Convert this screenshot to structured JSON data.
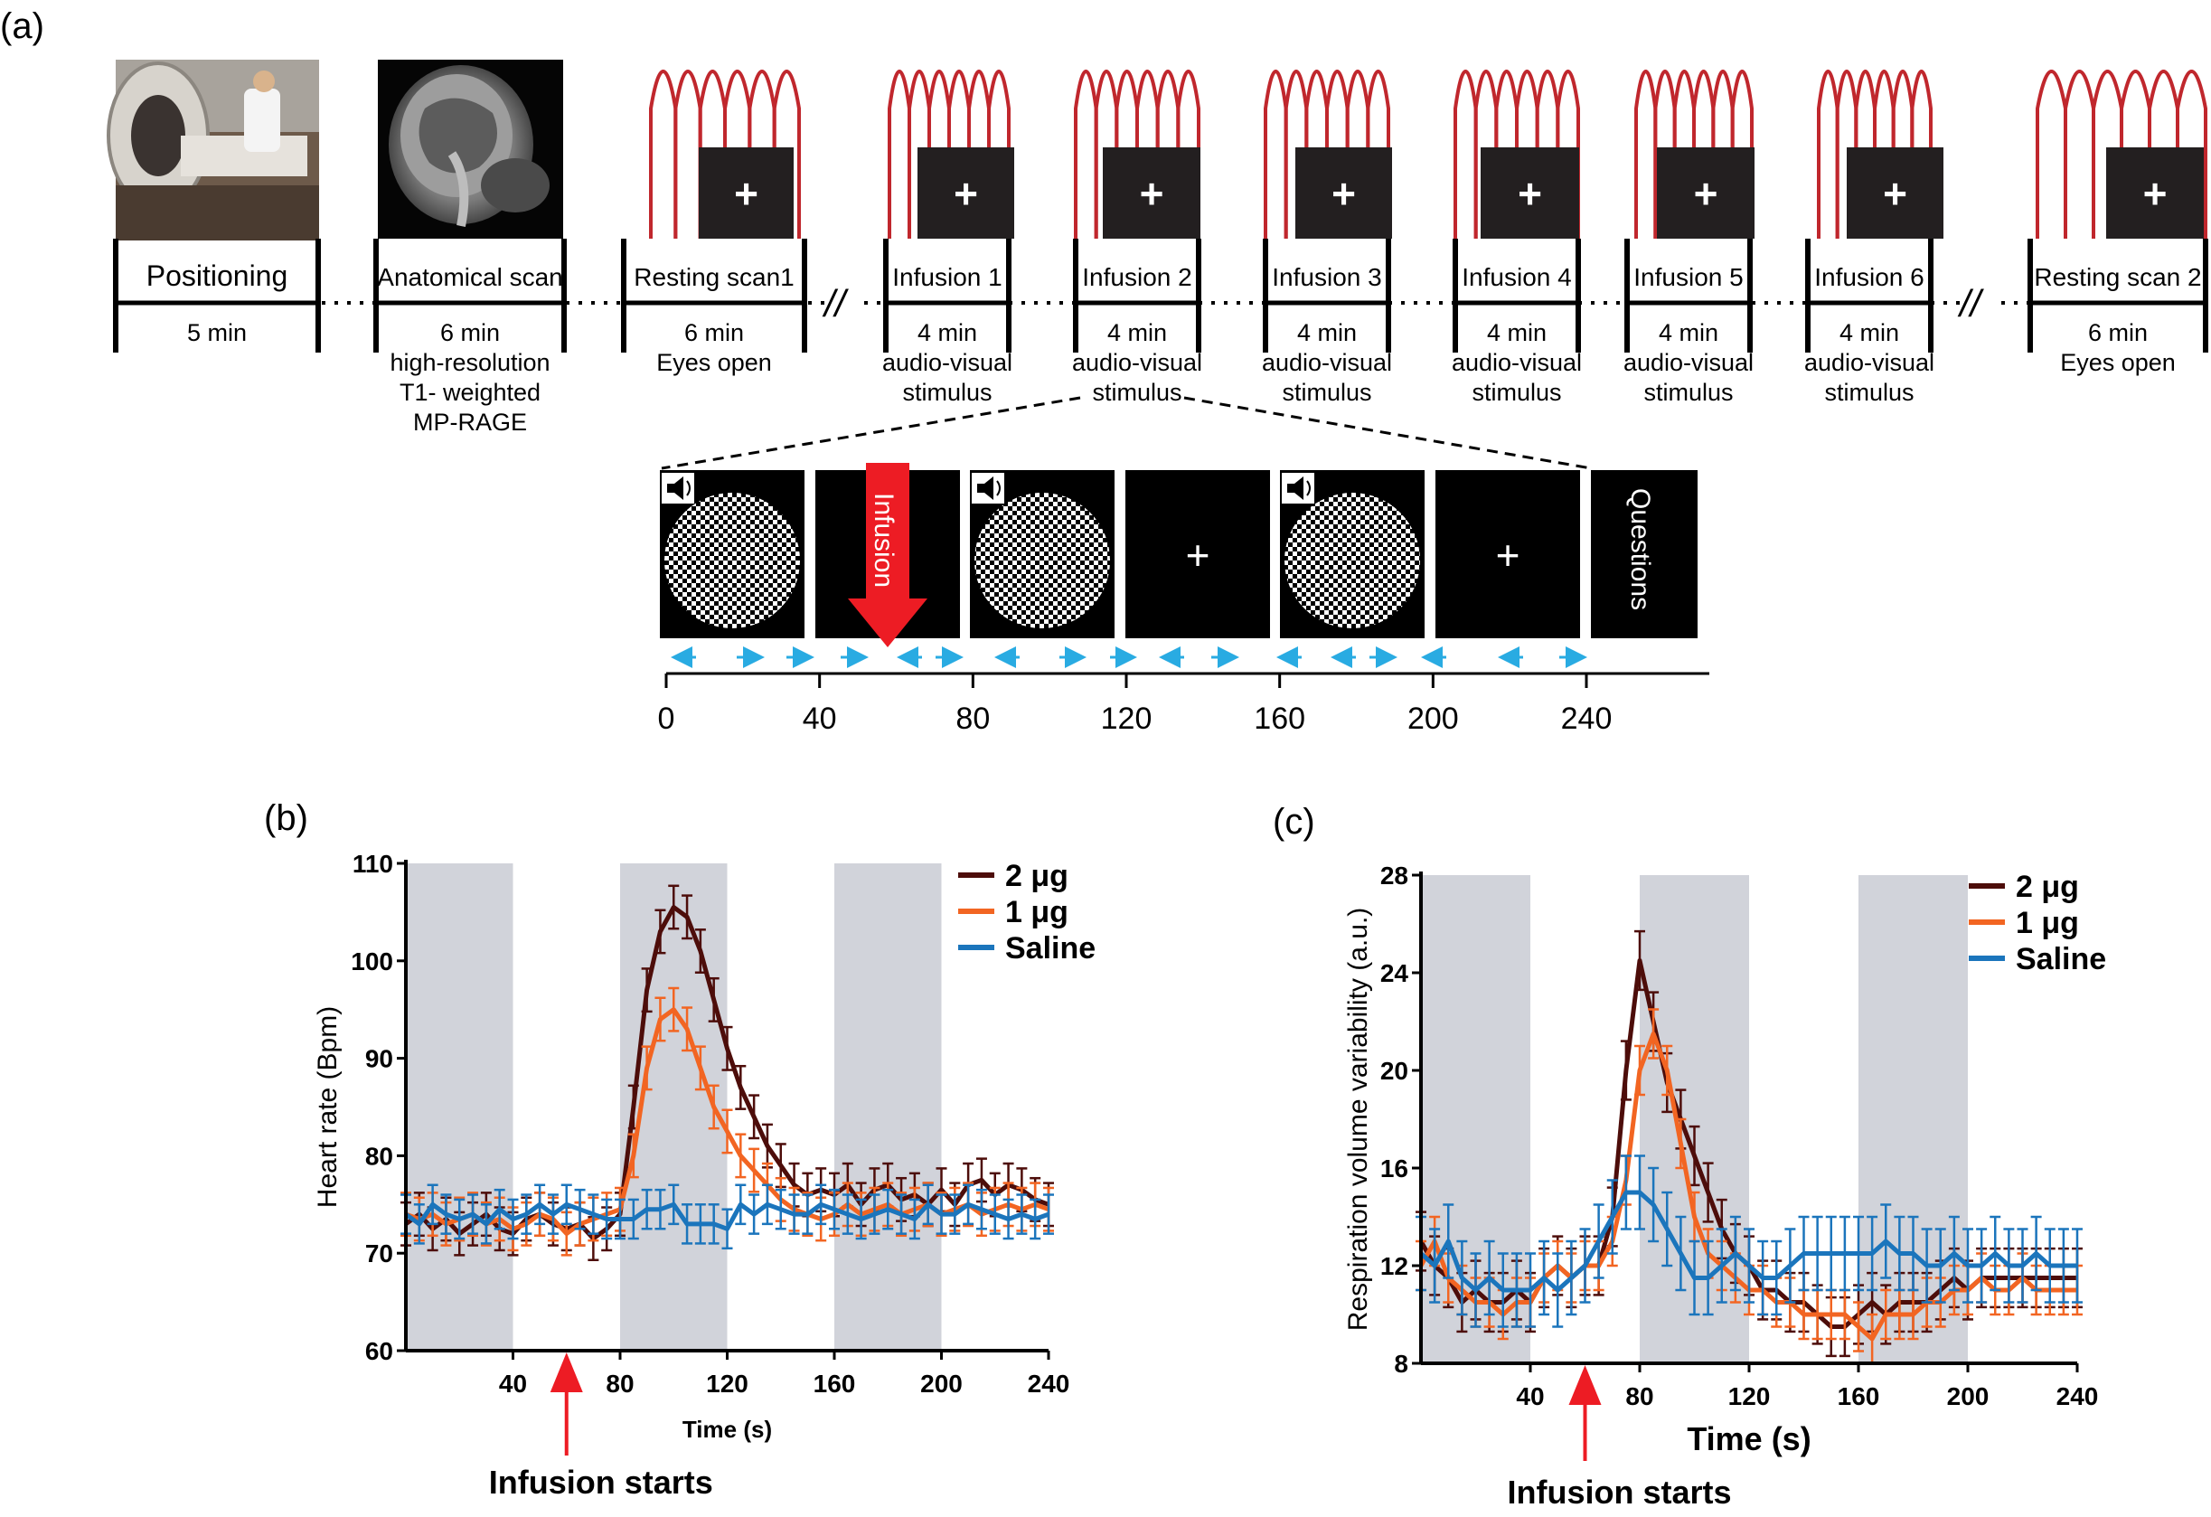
{
  "panel_a": {
    "label": "(a)",
    "blocks": [
      {
        "name": "Positioning",
        "lines": [
          "5 min"
        ]
      },
      {
        "name": "Anatomical scan",
        "lines": [
          "6 min",
          "high-resolution",
          "T1- weighted",
          "MP-RAGE"
        ]
      },
      {
        "name": "Resting scan1",
        "lines": [
          "6 min",
          "Eyes open"
        ]
      },
      {
        "name": "Infusion 1",
        "lines": [
          "4 min",
          "audio-visual",
          "stimulus"
        ]
      },
      {
        "name": "Infusion 2",
        "lines": [
          "4 min",
          "audio-visual",
          "stimulus"
        ]
      },
      {
        "name": "Infusion 3",
        "lines": [
          "4 min",
          "audio-visual",
          "stimulus"
        ]
      },
      {
        "name": "Infusion 4",
        "lines": [
          "4 min",
          "audio-visual",
          "stimulus"
        ]
      },
      {
        "name": "Infusion 5",
        "lines": [
          "4 min",
          "audio-visual",
          "stimulus"
        ]
      },
      {
        "name": "Infusion 6",
        "lines": [
          "4 min",
          "audio-visual",
          "stimulus"
        ]
      },
      {
        "name": "Resting scan 2",
        "lines": [
          "6 min",
          "Eyes open"
        ]
      }
    ],
    "break_mark": "//",
    "cross": "+",
    "infusion_arrow_text": "Infusion",
    "questions_text": "Questions",
    "timeline_ticks": [
      "0",
      "40",
      "80",
      "120",
      "160",
      "200",
      "240"
    ],
    "colors": {
      "coil": "#c0272d",
      "arrow": "#ed1c24",
      "cyan": "#29abe2"
    }
  },
  "panel_b": {
    "label": "(b)",
    "annotation": "Infusion starts",
    "chart_data": {
      "type": "line",
      "title": "",
      "xlabel": "Time (s)",
      "ylabel": "Heart rate (Bpm)",
      "xlim": [
        0,
        240
      ],
      "ylim": [
        60,
        110
      ],
      "xticks": [
        40,
        80,
        120,
        160,
        200,
        240
      ],
      "yticks": [
        60,
        70,
        80,
        90,
        100,
        110
      ],
      "shaded_intervals": [
        [
          0,
          40
        ],
        [
          80,
          120
        ],
        [
          160,
          200
        ]
      ],
      "infusion_start_x": 60,
      "legend": "top-right",
      "x": [
        0,
        5,
        10,
        15,
        20,
        25,
        30,
        35,
        40,
        45,
        50,
        55,
        60,
        65,
        70,
        75,
        80,
        85,
        90,
        95,
        100,
        105,
        110,
        115,
        120,
        125,
        130,
        135,
        140,
        145,
        150,
        155,
        160,
        165,
        170,
        175,
        180,
        185,
        190,
        195,
        200,
        205,
        210,
        215,
        220,
        225,
        230,
        235,
        240
      ],
      "series": [
        {
          "name": "2 μg",
          "color": "#4d0d0a",
          "err": 2.2,
          "values": [
            73,
            74,
            72.5,
            73.5,
            72,
            73,
            74,
            72.5,
            72,
            73.5,
            74,
            73,
            72.5,
            73,
            71.5,
            72.5,
            74,
            85,
            97,
            103,
            105.5,
            104.5,
            101,
            96,
            91,
            87,
            84,
            81,
            79,
            77,
            76,
            76.5,
            76,
            77,
            75,
            76.5,
            77,
            75.5,
            76,
            75,
            76.5,
            75,
            77,
            77.5,
            76,
            77,
            76.5,
            75.5,
            75
          ]
        },
        {
          "name": "1 μg",
          "color": "#f26522",
          "err": 2.2,
          "values": [
            74,
            73.5,
            74,
            73,
            73.5,
            74,
            73,
            73.5,
            72.5,
            73,
            74,
            73.5,
            72,
            73,
            73.5,
            74,
            74.5,
            80,
            89,
            94,
            95,
            93,
            89,
            85,
            82.5,
            80,
            78.5,
            77,
            75.5,
            74.5,
            74,
            73.5,
            74,
            75,
            74,
            74.5,
            75,
            74,
            74.5,
            75,
            74,
            74.5,
            75,
            74,
            74.5,
            75,
            74.5,
            75,
            74.5
          ]
        },
        {
          "name": "Saline",
          "color": "#1b75bc",
          "err": 2.0,
          "values": [
            74,
            73,
            75,
            74,
            73.5,
            74,
            73,
            74.5,
            73.5,
            74,
            75,
            74,
            75,
            74.5,
            74,
            73.5,
            73.5,
            73.5,
            74.5,
            74.5,
            75,
            73,
            73,
            73,
            72.5,
            75,
            74,
            75,
            74.5,
            74,
            74,
            75,
            74.5,
            74,
            73.5,
            74,
            74.5,
            74,
            73.5,
            75,
            74,
            74,
            75,
            74.5,
            74,
            73.5,
            74,
            73.5,
            74
          ]
        }
      ]
    }
  },
  "panel_c": {
    "label": "(c)",
    "annotation": "Infusion starts",
    "chart_data": {
      "type": "line",
      "title": "",
      "xlabel": "Time (s)",
      "ylabel": "Respiration volume variability (a.u.)",
      "xlim": [
        0,
        240
      ],
      "ylim": [
        8,
        28
      ],
      "xticks": [
        40,
        80,
        120,
        160,
        200,
        240
      ],
      "yticks": [
        8,
        12,
        16,
        20,
        24,
        28
      ],
      "shaded_intervals": [
        [
          0,
          40
        ],
        [
          80,
          120
        ],
        [
          160,
          200
        ]
      ],
      "infusion_start_x": 60,
      "legend": "top-right",
      "x": [
        0,
        5,
        10,
        15,
        20,
        25,
        30,
        35,
        40,
        45,
        50,
        55,
        60,
        65,
        70,
        75,
        80,
        85,
        90,
        95,
        100,
        105,
        110,
        115,
        120,
        125,
        130,
        135,
        140,
        145,
        150,
        155,
        160,
        165,
        170,
        175,
        180,
        185,
        190,
        195,
        200,
        205,
        210,
        215,
        220,
        225,
        230,
        235,
        240
      ],
      "series": [
        {
          "name": "2 μg",
          "color": "#4d0d0a",
          "err": 1.2,
          "values": [
            13,
            12,
            11.5,
            10.5,
            11,
            10.5,
            10.5,
            11,
            10.5,
            11.5,
            12,
            11.5,
            12,
            12,
            14,
            20,
            24.5,
            22,
            19.5,
            18,
            16.5,
            15,
            13.5,
            12.5,
            12,
            11,
            11,
            10.5,
            10.5,
            10,
            9.5,
            9.5,
            10,
            10.5,
            10,
            10.5,
            10.5,
            10.5,
            11,
            11.5,
            11,
            11.5,
            11.5,
            11.5,
            11.5,
            11.5,
            11.5,
            11.5,
            11.5
          ]
        },
        {
          "name": "1 μg",
          "color": "#f26522",
          "err": 1.0,
          "values": [
            12,
            13,
            11.5,
            11,
            10.5,
            10.5,
            10,
            10.5,
            10.5,
            11.5,
            12,
            11.5,
            12,
            12,
            13,
            15.5,
            20,
            21.5,
            20,
            17,
            14,
            12.5,
            12,
            11.5,
            11,
            11,
            10.5,
            10.5,
            10,
            10,
            10,
            10,
            9.5,
            9,
            10,
            10,
            10,
            10.5,
            10.5,
            11,
            11,
            11.5,
            11,
            11,
            11.5,
            11,
            11,
            11,
            11
          ]
        },
        {
          "name": "Saline",
          "color": "#1b75bc",
          "err": 1.5,
          "values": [
            12.5,
            12,
            13,
            11.5,
            11,
            11.5,
            11,
            11,
            11,
            11.5,
            11,
            11.5,
            12,
            13,
            14,
            15,
            15,
            14.5,
            13.5,
            12.5,
            11.5,
            11.5,
            12,
            12.5,
            12,
            11.5,
            11.5,
            12,
            12.5,
            12.5,
            12.5,
            12.5,
            12.5,
            12.5,
            13,
            12.5,
            12.5,
            12,
            12,
            12.5,
            12,
            12,
            12.5,
            12,
            12,
            12.5,
            12,
            12,
            12
          ]
        }
      ]
    }
  }
}
